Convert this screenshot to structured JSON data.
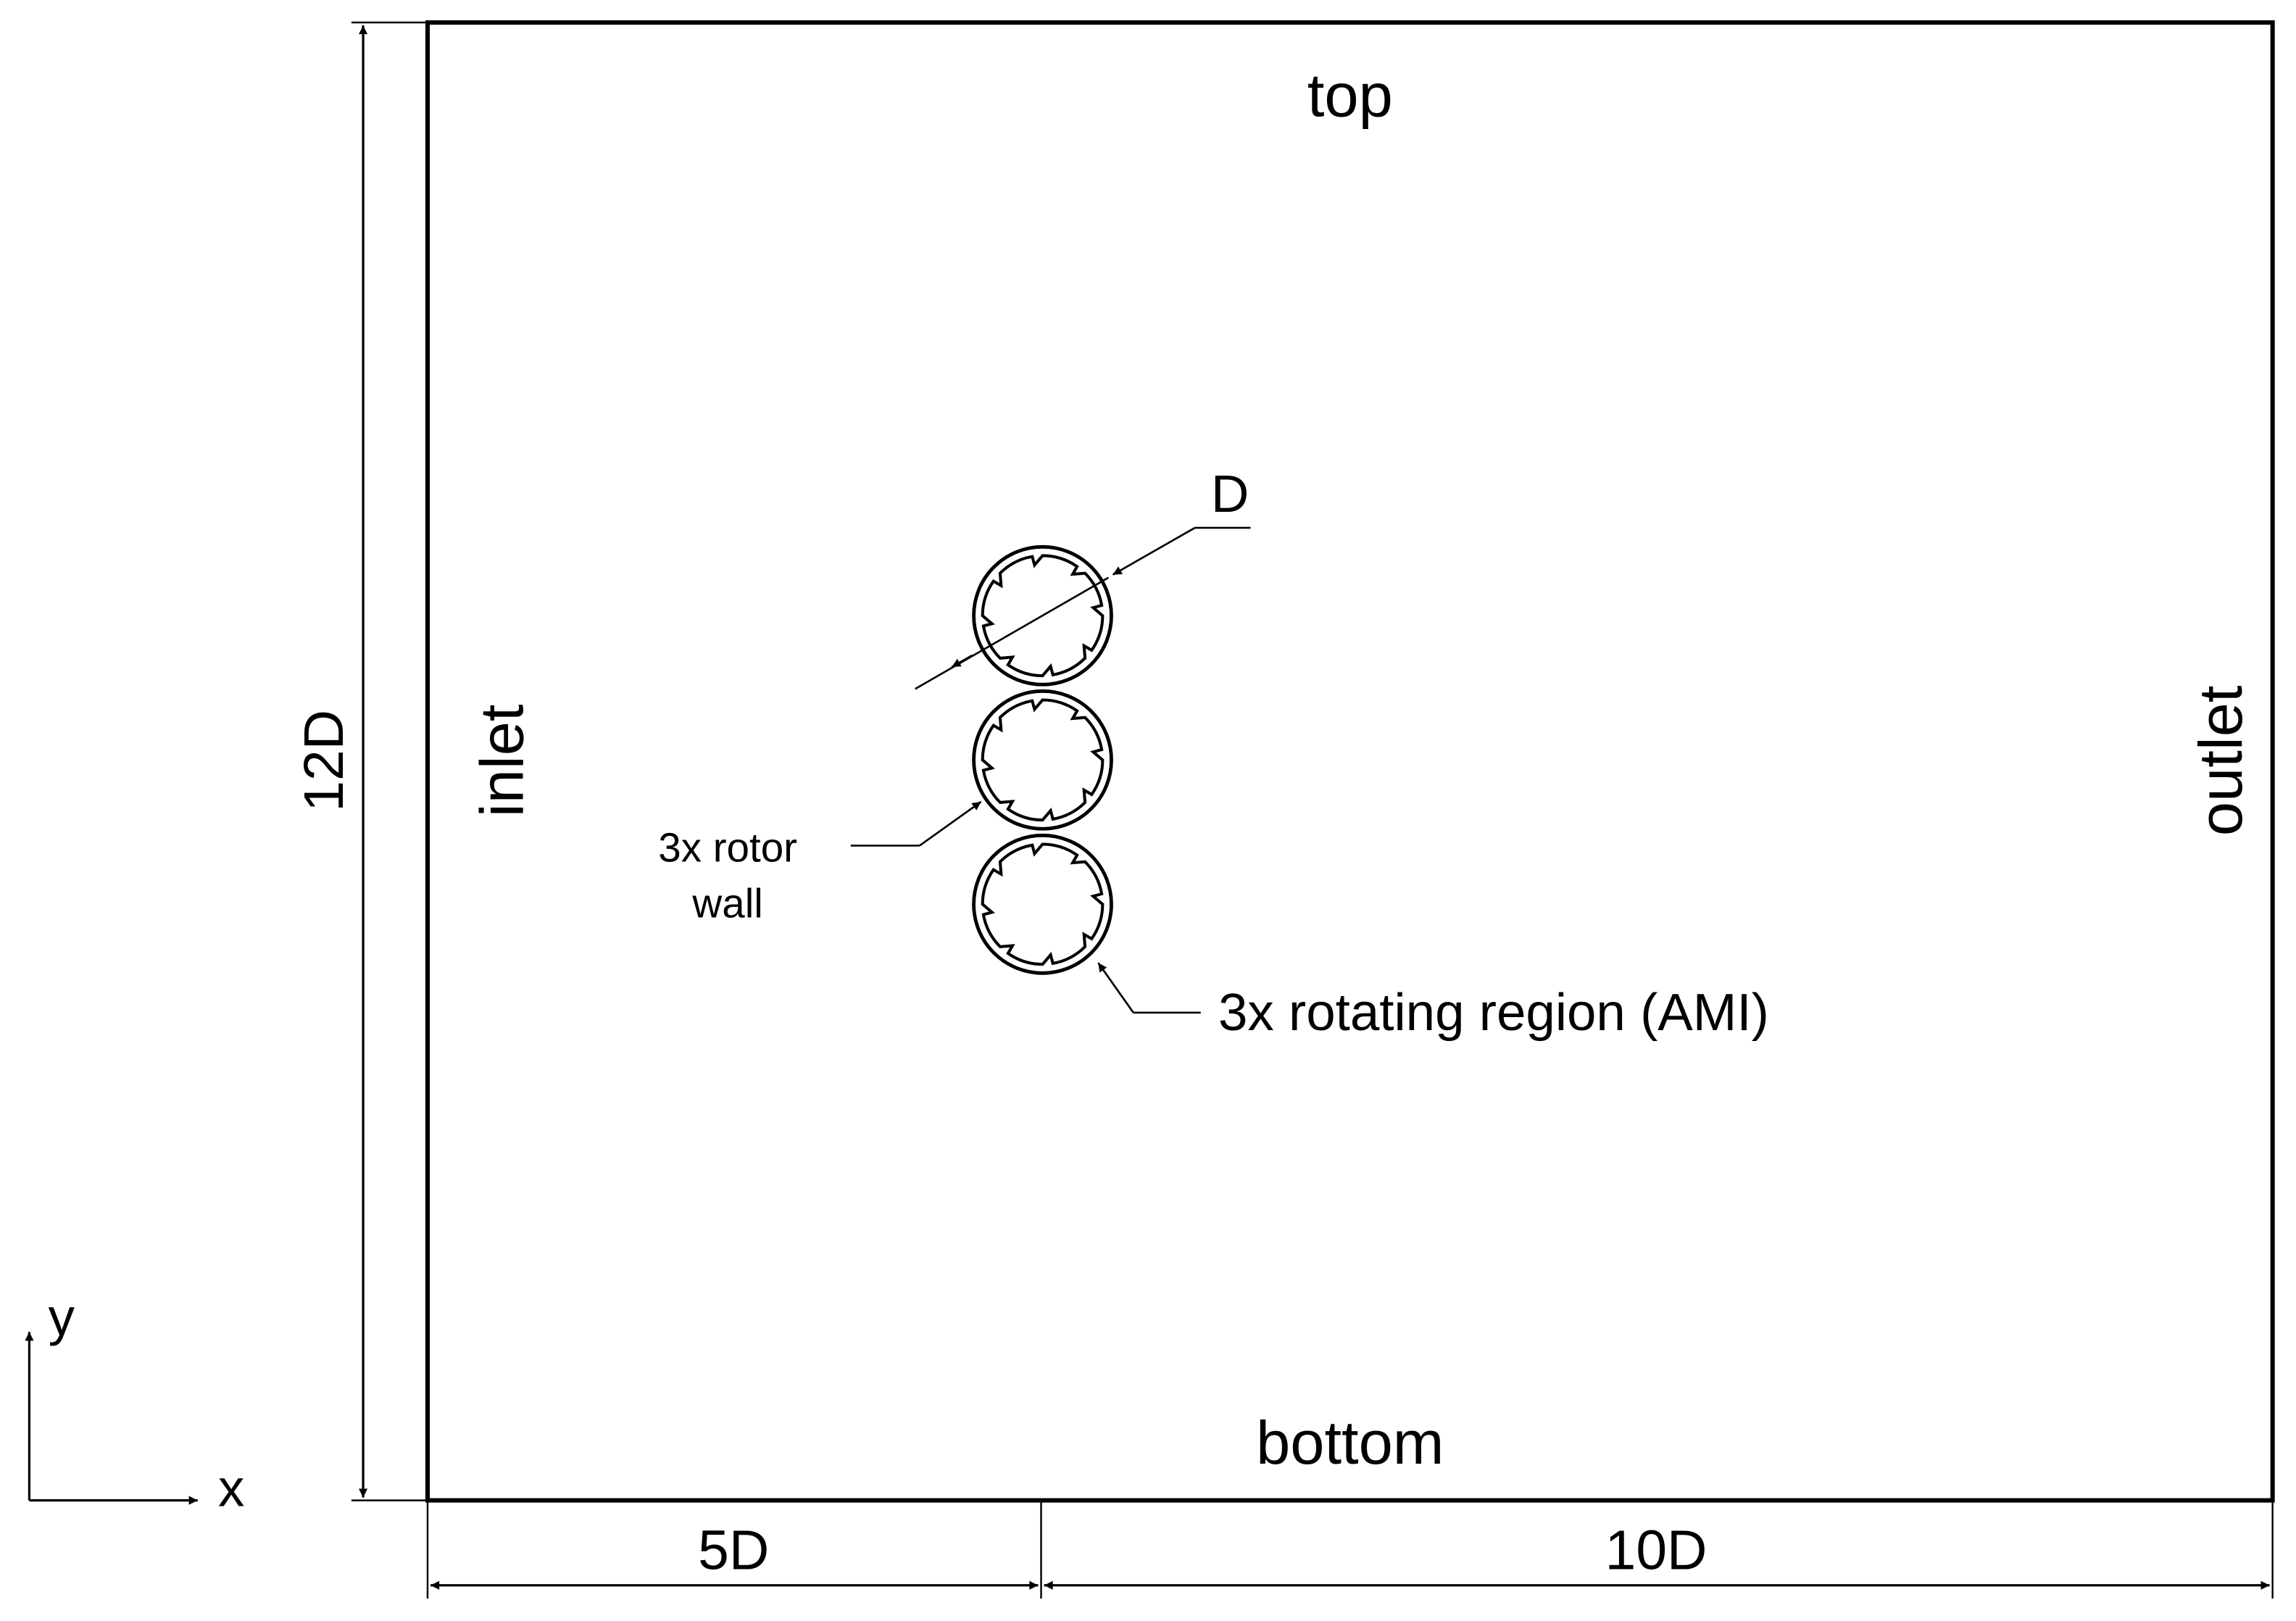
{
  "boundaries": {
    "top": "top",
    "bottom": "bottom",
    "inlet": "inlet",
    "outlet": "outlet"
  },
  "dimensions": {
    "height": "12D",
    "upstream": "5D",
    "downstream": "10D",
    "diameter": "D"
  },
  "callouts": {
    "rotor_wall_line1": "3x rotor",
    "rotor_wall_line2": "wall",
    "ami": "3x rotating region (AMI)"
  },
  "axes": {
    "x": "x",
    "y": "y"
  },
  "rotors": {
    "count": 3,
    "blades_per_rotor": 8
  },
  "colors": {
    "line": "#000000",
    "background": "#ffffff"
  }
}
